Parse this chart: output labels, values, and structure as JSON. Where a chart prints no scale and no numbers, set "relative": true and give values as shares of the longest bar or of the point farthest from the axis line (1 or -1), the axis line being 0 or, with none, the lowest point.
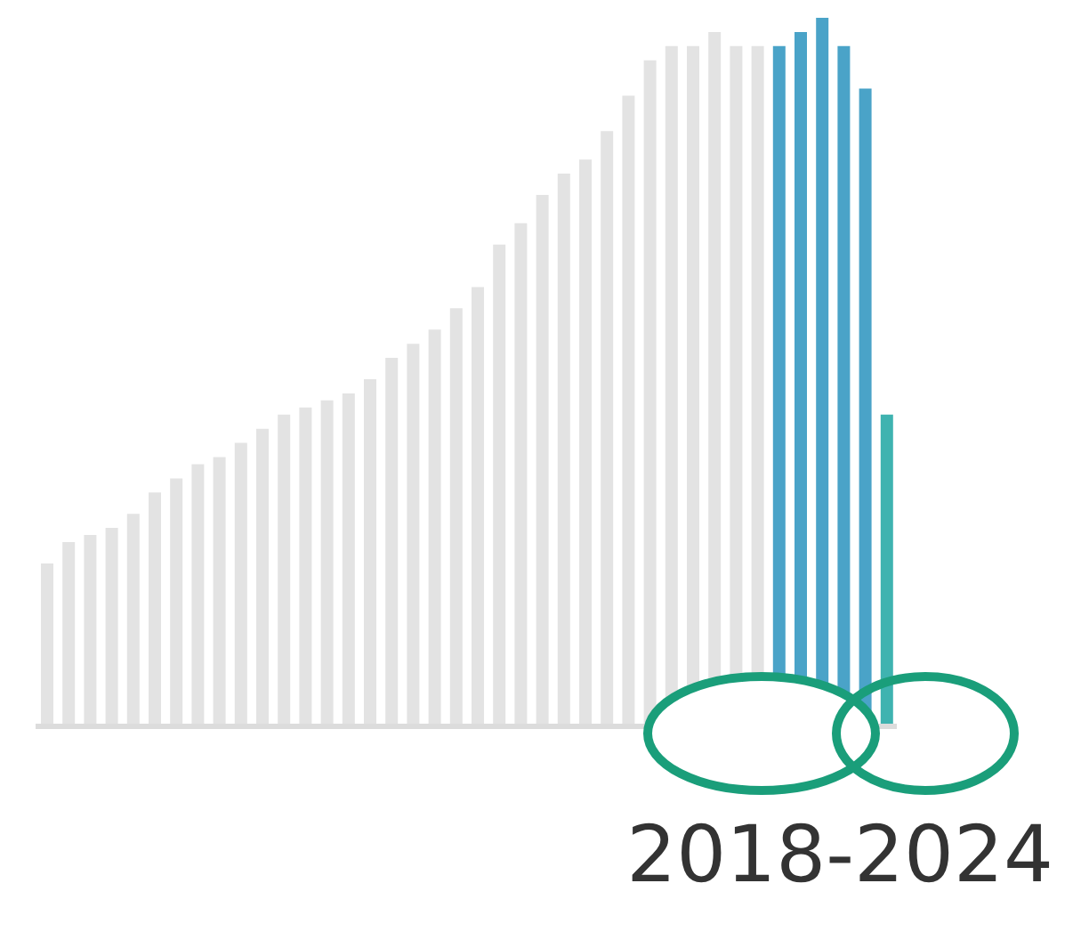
{
  "chart_data": {
    "type": "bar",
    "relative": true,
    "xlabel": "2018-2024",
    "categories": [
      null,
      null,
      null,
      null,
      null,
      null,
      null,
      null,
      null,
      null,
      null,
      null,
      null,
      null,
      null,
      null,
      null,
      null,
      null,
      null,
      null,
      null,
      null,
      null,
      null,
      null,
      null,
      null,
      null,
      null,
      null,
      null,
      null,
      null,
      null,
      null,
      null,
      null,
      null,
      null
    ],
    "values": [
      0.23,
      0.26,
      0.27,
      0.28,
      0.3,
      0.33,
      0.35,
      0.37,
      0.38,
      0.4,
      0.42,
      0.44,
      0.45,
      0.46,
      0.47,
      0.49,
      0.52,
      0.54,
      0.56,
      0.59,
      0.62,
      0.68,
      0.71,
      0.75,
      0.78,
      0.8,
      0.84,
      0.89,
      0.94,
      0.96,
      0.96,
      0.98,
      0.96,
      0.96,
      0.96,
      0.98,
      1,
      0.96,
      0.9,
      0.44
    ],
    "colors": [
      "#e3e3e3",
      "#e3e3e3",
      "#e3e3e3",
      "#e3e3e3",
      "#e3e3e3",
      "#e3e3e3",
      "#e3e3e3",
      "#e3e3e3",
      "#e3e3e3",
      "#e3e3e3",
      "#e3e3e3",
      "#e3e3e3",
      "#e3e3e3",
      "#e3e3e3",
      "#e3e3e3",
      "#e3e3e3",
      "#e3e3e3",
      "#e3e3e3",
      "#e3e3e3",
      "#e3e3e3",
      "#e3e3e3",
      "#e3e3e3",
      "#e3e3e3",
      "#e3e3e3",
      "#e3e3e3",
      "#e3e3e3",
      "#e3e3e3",
      "#e3e3e3",
      "#e3e3e3",
      "#e3e3e3",
      "#e3e3e3",
      "#e3e3e3",
      "#e3e3e3",
      "#e3e3e3",
      "#4aa3c8",
      "#4aa3c8",
      "#4aa3c8",
      "#4aa3c8",
      "#4aa3c8",
      "#3fb3b0"
    ]
  }
}
